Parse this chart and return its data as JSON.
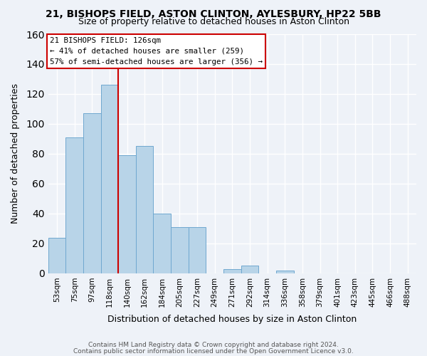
{
  "title": "21, BISHOPS FIELD, ASTON CLINTON, AYLESBURY, HP22 5BB",
  "subtitle": "Size of property relative to detached houses in Aston Clinton",
  "xlabel": "Distribution of detached houses by size in Aston Clinton",
  "ylabel": "Number of detached properties",
  "bar_labels": [
    "53sqm",
    "75sqm",
    "97sqm",
    "118sqm",
    "140sqm",
    "162sqm",
    "184sqm",
    "205sqm",
    "227sqm",
    "249sqm",
    "271sqm",
    "292sqm",
    "314sqm",
    "336sqm",
    "358sqm",
    "379sqm",
    "401sqm",
    "423sqm",
    "445sqm",
    "466sqm",
    "488sqm"
  ],
  "bar_values": [
    24,
    91,
    107,
    126,
    79,
    85,
    40,
    31,
    31,
    0,
    3,
    5,
    0,
    2,
    0,
    0,
    0,
    0,
    0,
    0,
    0
  ],
  "bar_color": "#b8d4e8",
  "vline_x": 3.5,
  "annotation_title": "21 BISHOPS FIELD: 126sqm",
  "annotation_line1": "← 41% of detached houses are smaller (259)",
  "annotation_line2": "57% of semi-detached houses are larger (356) →",
  "annotation_box_facecolor": "#ffffff",
  "annotation_box_edgecolor": "#cc0000",
  "vline_color": "#cc0000",
  "ylim": [
    0,
    160
  ],
  "yticks": [
    0,
    20,
    40,
    60,
    80,
    100,
    120,
    140,
    160
  ],
  "bg_color": "#eef2f8",
  "grid_color": "#ffffff",
  "title_fontsize": 10,
  "subtitle_fontsize": 9,
  "footer1": "Contains HM Land Registry data © Crown copyright and database right 2024.",
  "footer2": "Contains public sector information licensed under the Open Government Licence v3.0."
}
